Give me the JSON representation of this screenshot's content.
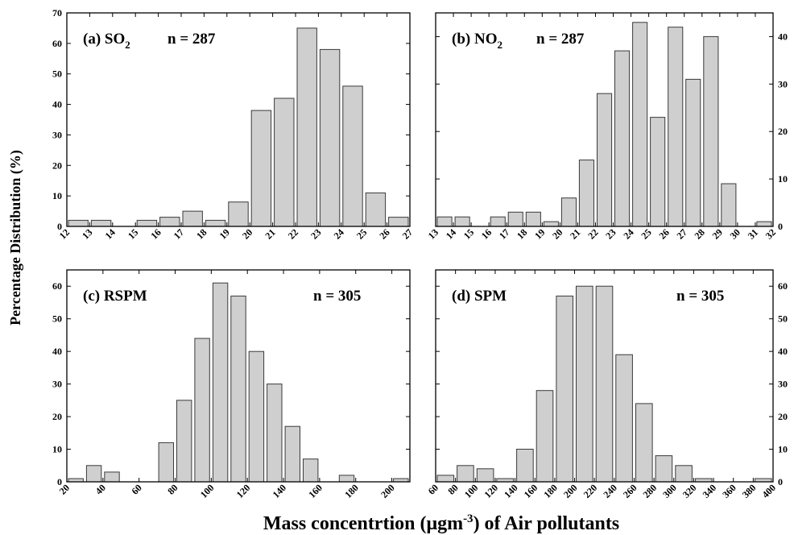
{
  "ylabel": "Percentage Distribution (%)",
  "xlabel_pre": "Mass concentrtion (μgm",
  "xlabel_sup": "-3",
  "xlabel_post": ") of Air pollutants",
  "chart_data": [
    {
      "type": "bar",
      "id": "a",
      "title_pre": "(a) SO",
      "title_sub": "2",
      "n_label": "n = 287",
      "xlim": [
        12,
        27
      ],
      "xticks": [
        12,
        13,
        14,
        15,
        16,
        17,
        18,
        19,
        20,
        21,
        22,
        23,
        24,
        25,
        26,
        27
      ],
      "ylim": [
        0,
        70
      ],
      "yticks": [
        0,
        10,
        20,
        30,
        40,
        50,
        60,
        70
      ],
      "y_axis_side": "left",
      "bin_width": 1,
      "x": [
        12,
        13,
        15,
        16,
        17,
        18,
        19,
        20,
        21,
        22,
        23,
        24,
        25,
        26
      ],
      "values": [
        2,
        2,
        2,
        3,
        5,
        2,
        8,
        38,
        42,
        65,
        58,
        46,
        11,
        3
      ]
    },
    {
      "type": "bar",
      "id": "b",
      "title_pre": "(b) NO",
      "title_sub": "2",
      "n_label": "n = 287",
      "xlim": [
        13,
        32
      ],
      "xticks": [
        13,
        14,
        15,
        16,
        17,
        18,
        19,
        20,
        21,
        22,
        23,
        24,
        25,
        26,
        27,
        28,
        29,
        30,
        31,
        32
      ],
      "ylim": [
        0,
        45
      ],
      "yticks": [
        0,
        10,
        20,
        30,
        40
      ],
      "y_axis_side": "right",
      "bin_width": 1,
      "x": [
        13,
        14,
        16,
        17,
        18,
        19,
        20,
        21,
        22,
        23,
        24,
        25,
        26,
        27,
        28,
        29,
        31
      ],
      "values": [
        2,
        2,
        2,
        3,
        3,
        1,
        6,
        14,
        28,
        37,
        43,
        23,
        42,
        31,
        40,
        9,
        1
      ]
    },
    {
      "type": "bar",
      "id": "c",
      "title_pre": "(c) RSPM",
      "title_sub": "",
      "n_label": "n = 305",
      "xlim": [
        20,
        210
      ],
      "xticks": [
        20,
        40,
        60,
        80,
        100,
        120,
        140,
        160,
        180,
        200
      ],
      "ylim": [
        0,
        65
      ],
      "yticks": [
        0,
        10,
        20,
        30,
        40,
        50,
        60
      ],
      "y_axis_side": "left",
      "bin_width": 10,
      "x": [
        20,
        30,
        40,
        70,
        80,
        90,
        100,
        110,
        120,
        130,
        140,
        150,
        170,
        200
      ],
      "values": [
        1,
        5,
        3,
        12,
        25,
        44,
        61,
        57,
        40,
        30,
        17,
        7,
        2,
        1
      ]
    },
    {
      "type": "bar",
      "id": "d",
      "title_pre": "(d) SPM",
      "title_sub": "",
      "n_label": "n = 305",
      "xlim": [
        60,
        400
      ],
      "xticks": [
        60,
        80,
        100,
        120,
        140,
        160,
        180,
        200,
        220,
        240,
        260,
        280,
        300,
        320,
        340,
        360,
        380,
        400
      ],
      "ylim": [
        0,
        65
      ],
      "yticks": [
        0,
        10,
        20,
        30,
        40,
        50,
        60
      ],
      "y_axis_side": "right",
      "bin_width": 20,
      "x": [
        60,
        80,
        100,
        120,
        140,
        160,
        180,
        200,
        220,
        240,
        260,
        280,
        300,
        320,
        380
      ],
      "values": [
        2,
        5,
        4,
        1,
        10,
        28,
        57,
        60,
        60,
        39,
        24,
        8,
        5,
        1,
        1
      ]
    }
  ]
}
